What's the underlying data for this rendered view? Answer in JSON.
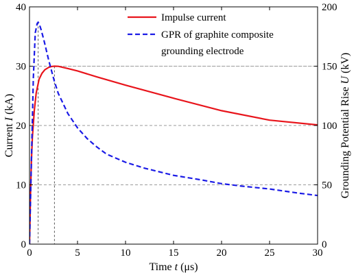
{
  "chart_data": {
    "type": "line",
    "title": "",
    "xlabel": {
      "prefix": "Time ",
      "var": "t",
      "suffix": " (μs)"
    },
    "ylabel_left": {
      "prefix": "Current ",
      "var": "I",
      "suffix": " (kA)"
    },
    "ylabel_right": {
      "prefix": "Grounding Potential Rise ",
      "var": "U",
      "suffix": " (kV)"
    },
    "xlim": [
      0,
      30
    ],
    "ylim_left": [
      0,
      40
    ],
    "ylim_right": [
      0,
      200
    ],
    "x_ticks": [
      0,
      5,
      10,
      15,
      20,
      25,
      30
    ],
    "y_left_ticks": [
      0,
      10,
      20,
      30,
      40
    ],
    "y_right_ticks": [
      0,
      50,
      100,
      150,
      200
    ],
    "grid": "dashed horizontal lines at 10, 20, 30 kA",
    "legend_position": "top-right",
    "reference_lines": [
      {
        "x": 0.9,
        "y_left": 37.4
      },
      {
        "x": 2.6,
        "y_left": 30.0
      }
    ],
    "series": [
      {
        "name": "Impulse current",
        "axis": "left",
        "color": "#e8141b",
        "style": "solid",
        "x": [
          0,
          0.1,
          0.2,
          0.3,
          0.5,
          0.7,
          1.0,
          1.3,
          1.6,
          2.0,
          2.3,
          2.6,
          3.0,
          4,
          5,
          7,
          10,
          15,
          20,
          25,
          30
        ],
        "values": [
          0,
          8.0,
          14.0,
          18.0,
          22.5,
          25.5,
          27.8,
          28.8,
          29.4,
          29.8,
          29.95,
          30.0,
          29.98,
          29.6,
          29.2,
          28.2,
          26.8,
          24.6,
          22.5,
          20.9,
          20.1
        ]
      },
      {
        "name": [
          "GPR of graphite composite",
          "grounding electrode"
        ],
        "axis": "right",
        "color": "#1a1ae6",
        "style": "dashed",
        "x": [
          0,
          0.2,
          0.4,
          0.6,
          0.8,
          0.9,
          1.0,
          1.2,
          1.5,
          2.0,
          2.6,
          3,
          4,
          5,
          6,
          7,
          8,
          10,
          12,
          15,
          18,
          20,
          22,
          25,
          28,
          30
        ],
        "values": [
          0,
          70,
          140,
          178,
          186,
          187,
          186,
          181,
          172,
          155,
          137,
          127,
          110,
          98,
          89,
          82,
          76,
          69,
          64,
          58,
          54,
          51,
          49,
          46.5,
          43,
          41
        ]
      }
    ]
  }
}
